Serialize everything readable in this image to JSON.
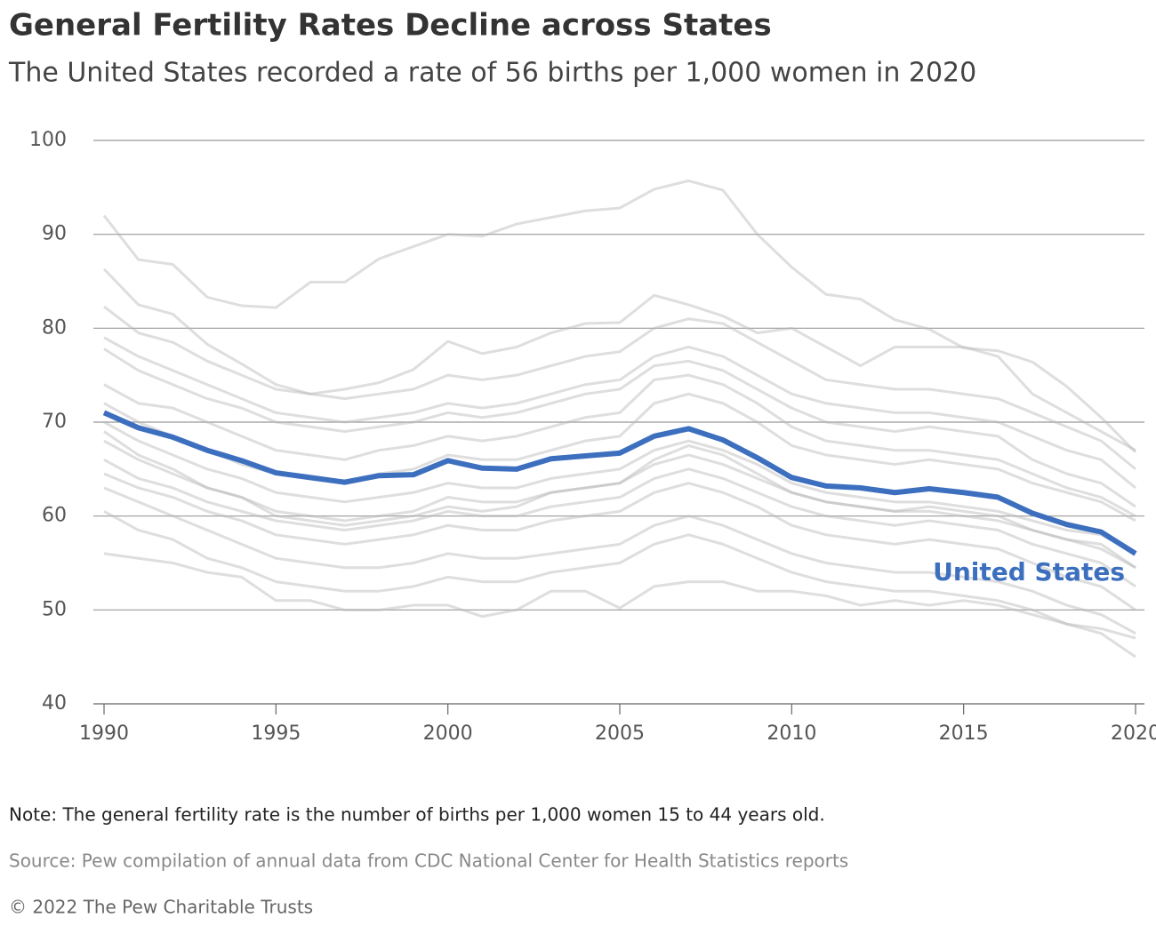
{
  "chart_data": {
    "type": "line",
    "title": "General Fertility Rates Decline across States",
    "subtitle": "The United States recorded a rate of 56 births per 1,000 women in 2020",
    "note": "Note: The general fertility rate is the number of births per 1,000 women 15 to 44 years old.",
    "source": "Source: Pew compilation of annual data from CDC National Center for Health Statistics reports",
    "copyright": "© 2022 The Pew Charitable Trusts",
    "x": [
      1990,
      1991,
      1992,
      1993,
      1994,
      1995,
      1996,
      1997,
      1998,
      1999,
      2000,
      2001,
      2002,
      2003,
      2004,
      2005,
      2006,
      2007,
      2008,
      2009,
      2010,
      2011,
      2012,
      2013,
      2014,
      2015,
      2016,
      2017,
      2018,
      2019,
      2020
    ],
    "xlim": [
      1990,
      2020
    ],
    "xticks": [
      1990,
      1995,
      2000,
      2005,
      2010,
      2015,
      2020
    ],
    "ylim": [
      40,
      100
    ],
    "yticks": [
      40,
      50,
      60,
      70,
      80,
      90,
      100
    ],
    "grid": true,
    "series": [
      {
        "color": "#b5b5b5",
        "values": [
          92,
          87.3,
          86.8,
          83.3,
          82.4,
          82.2,
          84.9,
          84.9,
          87.4,
          88.7,
          90,
          89.8,
          91.1,
          91.8,
          92.5,
          92.8,
          94.8,
          95.7,
          94.7,
          90,
          86.5,
          83.6,
          83.1,
          80.9,
          79.9,
          77.9,
          77.6,
          76.4,
          73.8,
          70.5,
          66.8
        ]
      },
      {
        "color": "#b5b5b5",
        "values": [
          86.3,
          82.5,
          81.5,
          78.3,
          76.2,
          74,
          73,
          73.5,
          74.2,
          75.6,
          78.6,
          77.3,
          78,
          79.5,
          80.5,
          80.6,
          83.5,
          82.5,
          81.3,
          79.5,
          80,
          78,
          76,
          78,
          78,
          78,
          77,
          73,
          71,
          69,
          67
        ]
      },
      {
        "color": "#b5b5b5",
        "values": [
          82.3,
          79.5,
          78.5,
          76.5,
          75,
          73.5,
          73,
          72.5,
          73,
          73.5,
          75,
          74.5,
          75,
          76,
          77,
          77.5,
          80,
          81,
          80.5,
          78.5,
          76.5,
          74.5,
          74,
          73.5,
          73.5,
          73,
          72.5,
          71,
          69.5,
          68,
          65
        ]
      },
      {
        "color": "#b5b5b5",
        "values": [
          79,
          77,
          75.5,
          74,
          72.5,
          71,
          70.5,
          70,
          70.5,
          71,
          72,
          71.5,
          72,
          73,
          74,
          74.5,
          77,
          78,
          77,
          75,
          73,
          72,
          71.5,
          71,
          71,
          70.5,
          70,
          68.5,
          67,
          66,
          63
        ]
      },
      {
        "color": "#b5b5b5",
        "values": [
          77.8,
          75.5,
          74,
          72.5,
          71.5,
          70,
          69.5,
          69,
          69.5,
          70,
          71,
          70.5,
          71,
          72,
          73,
          73.5,
          76,
          76.5,
          75.5,
          73.5,
          71.5,
          70,
          69.5,
          69,
          69.5,
          69,
          68.5,
          66,
          64.5,
          63.5,
          61
        ]
      },
      {
        "color": "#b5b5b5",
        "values": [
          74,
          72,
          71.5,
          70,
          68.5,
          67,
          66.5,
          66,
          67,
          67.5,
          68.5,
          68,
          68.5,
          69.5,
          70.5,
          71,
          74.5,
          75,
          74,
          72,
          69.5,
          68,
          67.5,
          67,
          67,
          66.5,
          66,
          64.5,
          63,
          62,
          60
        ]
      },
      {
        "color": "#b5b5b5",
        "values": [
          72,
          70,
          68.5,
          67,
          65.5,
          64.5,
          64,
          63.5,
          64.5,
          65,
          66.5,
          66,
          66,
          67,
          68,
          68.5,
          72,
          73,
          72,
          70,
          67.5,
          66.5,
          66,
          65.5,
          66,
          65.5,
          65,
          63.5,
          62.5,
          61.5,
          59.5
        ]
      },
      {
        "color": "#b5b5b5",
        "values": [
          70,
          68,
          66.5,
          65,
          64,
          62.5,
          62,
          61.5,
          62,
          62.5,
          63.5,
          63,
          63,
          64,
          64.5,
          65,
          67,
          68,
          67,
          65.5,
          63.5,
          62.5,
          62,
          61.5,
          61.5,
          61,
          60.5,
          59.5,
          58.5,
          58,
          56
        ]
      },
      {
        "color": "#b5b5b5",
        "values": [
          69,
          66.5,
          65,
          63,
          62,
          60,
          59.5,
          59,
          59.5,
          60,
          61,
          60.5,
          61,
          62.5,
          63,
          63.5,
          66,
          67.5,
          66.5,
          64.5,
          62.5,
          61.5,
          61,
          60.5,
          61,
          60.5,
          60,
          58.5,
          57.5,
          57,
          54.5
        ]
      },
      {
        "color": "#b5b5b5",
        "values": [
          68,
          66,
          64.5,
          63,
          62,
          60.5,
          60,
          59.5,
          60,
          60.5,
          62,
          61.5,
          61.5,
          62.5,
          63,
          63.5,
          65.5,
          66.5,
          65.5,
          64,
          62.5,
          61.5,
          61,
          60.5,
          60.5,
          60,
          59.5,
          58.5,
          57.5,
          56.5,
          54.5
        ]
      },
      {
        "color": "#b5b5b5",
        "values": [
          66,
          64,
          63,
          61.5,
          60.5,
          59.5,
          59,
          58.5,
          59,
          59.5,
          60.5,
          60,
          60,
          61,
          61.5,
          62,
          64,
          65,
          64,
          62.5,
          61,
          60,
          59.5,
          59,
          59.5,
          59,
          58.5,
          57,
          56,
          55,
          52.5
        ]
      },
      {
        "color": "#b5b5b5",
        "values": [
          64.5,
          63,
          62,
          60.5,
          59.5,
          58,
          57.5,
          57,
          57.5,
          58,
          59,
          58.5,
          58.5,
          59.5,
          60,
          60.5,
          62.5,
          63.5,
          62.5,
          61,
          59,
          58,
          57.5,
          57,
          57.5,
          57,
          56.5,
          55,
          53.5,
          52.5,
          50
        ]
      },
      {
        "color": "#b5b5b5",
        "values": [
          63,
          61.5,
          60,
          58.5,
          57,
          55.5,
          55,
          54.5,
          54.5,
          55,
          56,
          55.5,
          55.5,
          56,
          56.5,
          57,
          59,
          60,
          59,
          57.5,
          56,
          55,
          54.5,
          54,
          54,
          53.5,
          53,
          52,
          50.5,
          49.5,
          47.5
        ]
      },
      {
        "color": "#b5b5b5",
        "values": [
          60.5,
          58.5,
          57.5,
          55.5,
          54.5,
          53,
          52.5,
          52,
          52,
          52.5,
          53.5,
          53,
          53,
          54,
          54.5,
          55,
          57,
          58,
          57,
          55.5,
          54,
          53,
          52.5,
          52,
          52,
          51.5,
          51,
          50,
          48.5,
          47.5,
          45
        ]
      },
      {
        "color": "#b5b5b5",
        "values": [
          56,
          55.5,
          55,
          54,
          53.5,
          51,
          51,
          50,
          50,
          50.5,
          50.5,
          49.3,
          50,
          52,
          52,
          50.2,
          52.5,
          53,
          53,
          52,
          52,
          51.5,
          50.5,
          51,
          50.5,
          51,
          50.5,
          49.5,
          48.5,
          48,
          47
        ]
      },
      {
        "name": "United States",
        "color": "#3d6fbf",
        "values": [
          71,
          69.4,
          68.4,
          67,
          65.9,
          64.6,
          64.1,
          63.6,
          64.3,
          64.4,
          65.9,
          65.1,
          65,
          66.1,
          66.4,
          66.7,
          68.5,
          69.3,
          68.1,
          66.2,
          64.1,
          63.2,
          63,
          62.5,
          62.9,
          62.5,
          62,
          60.3,
          59.1,
          58.3,
          56
        ]
      }
    ]
  }
}
